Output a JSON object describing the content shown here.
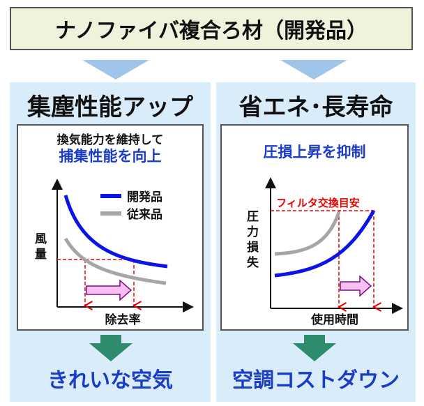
{
  "title": "ナノファイバ複合ろ材（開発品）",
  "left": {
    "heading": "集塵性能アップ",
    "sub1": "換気能力を維持して",
    "sub2": "捕集性能を向上",
    "y_axis": "風量",
    "x_axis": "除去率",
    "legend_dev": "開発品",
    "legend_conv": "従来品",
    "bottom": "きれいな空気"
  },
  "right": {
    "heading": "省エネ･長寿命",
    "sub": "圧損上昇を抑制",
    "y_axis": "圧力損失",
    "x_axis": "使用時間",
    "annotation": "フィルタ交換目安",
    "bottom": "空調コストダウン"
  },
  "colors": {
    "developed": "#0a14e6",
    "conventional": "#a6a6a6",
    "guide": "#e60000",
    "arrow_fill": "#f7c0f0",
    "arrow_stroke": "#7a0a8a",
    "green": "#2e8b6e",
    "panel": "#d9ecfa",
    "title_bg": "#eef3dc"
  }
}
